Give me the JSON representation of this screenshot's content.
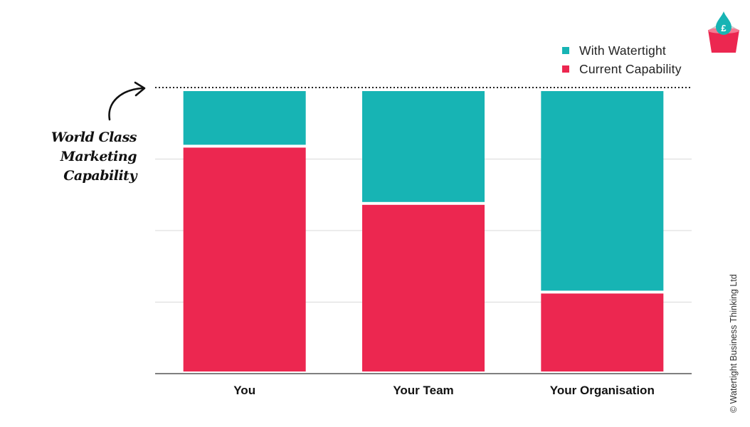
{
  "chart_data": {
    "type": "bar",
    "stacked": true,
    "categories": [
      "You",
      "Your Team",
      "Your Organisation"
    ],
    "series": [
      {
        "name": "Current Capability",
        "color": "#ec2750",
        "values": [
          79,
          59,
          28
        ]
      },
      {
        "name": "With Watertight",
        "color": "#17b4b4",
        "values": [
          21,
          41,
          72
        ]
      }
    ],
    "ylim": [
      0,
      100
    ],
    "grid": true,
    "reference_line": {
      "value": 100,
      "style": "dotted"
    },
    "legend": {
      "position": "top-right",
      "order": [
        "With Watertight",
        "Current Capability"
      ]
    },
    "annotation": {
      "lines": [
        "World Class",
        "Marketing Capability"
      ]
    }
  },
  "copyright": "© Watertight Business Thinking Ltd",
  "logo": {
    "icon": "bucket-pound-icon",
    "bucket_color": "#ec2750",
    "drop_color": "#17b4b4",
    "symbol": "£"
  },
  "colors": {
    "teal": "#17b4b4",
    "red": "#ec2750",
    "axis": "#333333",
    "grid": "#d9d9d9"
  }
}
